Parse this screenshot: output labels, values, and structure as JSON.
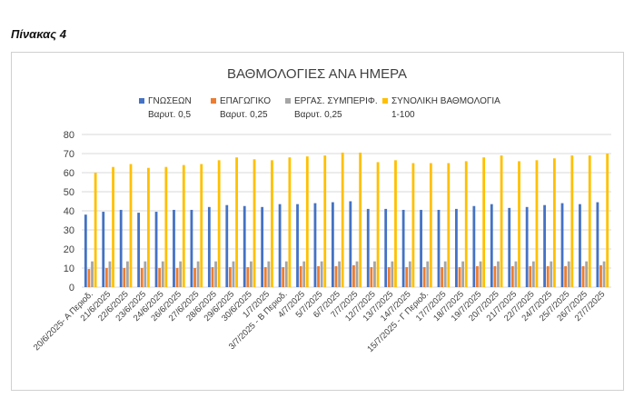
{
  "caption": "Πίνακας 4",
  "chart_data": {
    "type": "bar",
    "title": "ΒΑΘΜΟΛΟΓΙΕΣ ΑΝΑ ΗΜΕΡΑ",
    "xlabel": "",
    "ylabel": "",
    "ylim": [
      0,
      80
    ],
    "yticks": [
      0,
      10,
      20,
      30,
      40,
      50,
      60,
      70,
      80
    ],
    "grid": true,
    "legend_position": "top",
    "categories": [
      "20/6/2025- Α Περιοδ.",
      "21/6/2025",
      "22/6/2025",
      "23/6/2025",
      "24/6/2025",
      "26/6/2025",
      "27/6/2025",
      "28/6/2025",
      "29/6/2025",
      "30/6/2025",
      "1/7/2025",
      "3/7/2025 - Β Περιοδ.",
      "4/7/2025",
      "5/7/2025",
      "6/7/2025",
      "7/7/2025",
      "12/7/2025",
      "13/7/2025",
      "14/7/2025",
      "15/7/2025 - Γ Περιοδ.",
      "17/7/2025",
      "18/7/2025",
      "19/7/2025",
      "20/7/2025",
      "21/7/2025",
      "22/7/2025",
      "24/7/2025",
      "25/7/2025",
      "26/7/2025",
      "27/7/2025"
    ],
    "series": [
      {
        "name": "ΓΝΩΣΕΩΝ",
        "weight": "Βαρυτ. 0,5",
        "color": "#4472c4",
        "values": [
          38,
          39.5,
          40.5,
          39,
          39.5,
          40.5,
          40.5,
          42,
          43,
          42.5,
          42,
          43.5,
          43.5,
          44,
          44.5,
          45,
          41,
          41,
          40.5,
          40.5,
          40.5,
          41,
          42.5,
          43.5,
          41.5,
          42,
          43,
          44,
          43.5,
          44.5
        ]
      },
      {
        "name": "ΕΠΑΓΩΓΙΚΟ",
        "weight": "Βαρυτ. 0,25",
        "color": "#ed7d31",
        "values": [
          9.5,
          10,
          10,
          10,
          10,
          10,
          10,
          10.5,
          10.5,
          10.5,
          10.5,
          10.5,
          11,
          11,
          11,
          11.5,
          10.5,
          10.5,
          10.5,
          10.5,
          10.5,
          10.5,
          11,
          11,
          11,
          11,
          11,
          11,
          11,
          11.5
        ]
      },
      {
        "name": "ΕΡΓΑΣ. ΣΥΜΠΕΡΙΦ.",
        "weight": "Βαρυτ. 0,25",
        "color": "#a5a5a5",
        "values": [
          13.5,
          13.5,
          13.5,
          13.5,
          13.5,
          13.5,
          13.5,
          13.5,
          13.5,
          13.5,
          13.5,
          13.5,
          13.5,
          13.5,
          13.5,
          13.5,
          13.5,
          13.5,
          13.5,
          13.5,
          13.5,
          13.5,
          13.5,
          13.5,
          13.5,
          13.5,
          13.5,
          13.5,
          13.5,
          13.5
        ]
      },
      {
        "name": "ΣΥΝΟΛΙΚΗ ΒΑΘΜΟΛΟΓΙΑ",
        "weight": "1-100",
        "color": "#ffc000",
        "values": [
          60,
          63,
          64.5,
          62.5,
          63,
          64,
          64.5,
          66.5,
          68,
          67,
          66.5,
          68,
          68.5,
          69,
          70.5,
          70.5,
          65.5,
          66.5,
          65,
          65,
          65,
          66,
          68,
          69,
          66,
          66.5,
          67.5,
          69,
          69,
          70
        ]
      }
    ]
  }
}
